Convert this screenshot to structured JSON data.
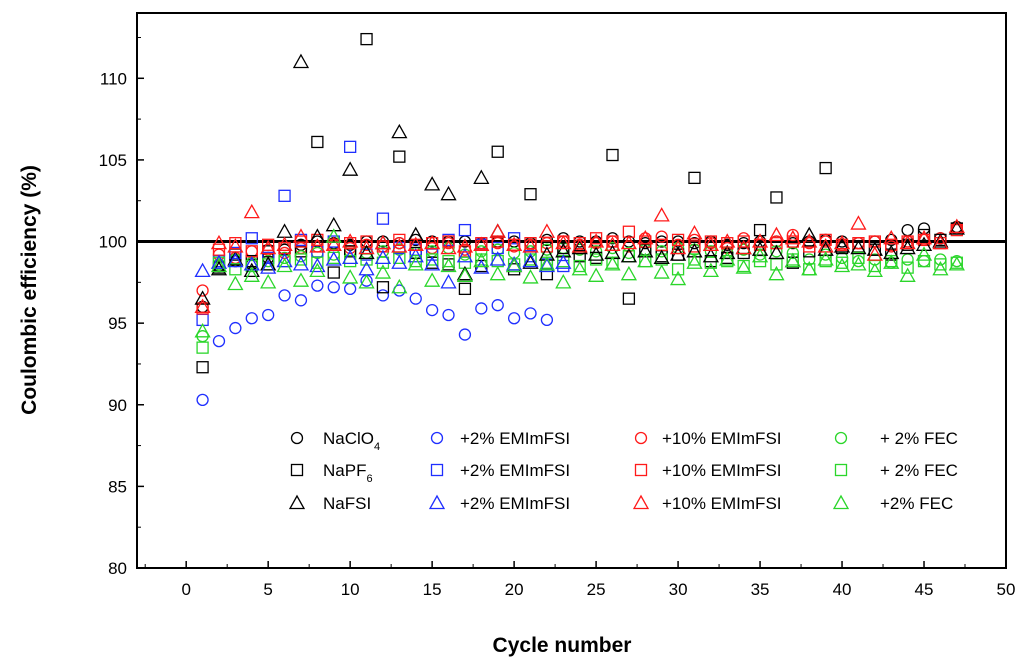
{
  "chart_data": {
    "type": "scatter",
    "xlabel": "Cycle number",
    "ylabel": "Coulombic efficiency (%)",
    "xlim": [
      -3,
      50
    ],
    "ylim": [
      80,
      114
    ],
    "xticks": [
      0,
      5,
      10,
      15,
      20,
      25,
      30,
      35,
      40,
      45,
      50
    ],
    "yticks": [
      80,
      85,
      90,
      95,
      100,
      105,
      110
    ],
    "reference_line_y": 100,
    "legend_position": "bottom-right (inside plot)",
    "legend_rows": [
      {
        "salt": "NaClO",
        "salt_subscript": "4",
        "marker": "circle"
      },
      {
        "salt": "NaPF",
        "salt_subscript": "6",
        "marker": "square"
      },
      {
        "salt": "NaFSI",
        "salt_subscript": "",
        "marker": "triangle"
      }
    ],
    "series": [
      {
        "marker": "circle",
        "color": "#000000",
        "legend": "",
        "x": [
          1,
          2,
          3,
          4,
          5,
          6,
          7,
          8,
          9,
          10,
          11,
          12,
          13,
          14,
          15,
          16,
          17,
          18,
          19,
          20,
          21,
          22,
          23,
          24,
          25,
          26,
          27,
          28,
          29,
          30,
          31,
          32,
          33,
          34,
          35,
          36,
          37,
          38,
          39,
          40,
          41,
          42,
          43,
          44,
          45,
          46,
          47
        ],
        "y": [
          96.0,
          98.5,
          98.8,
          98.6,
          99.0,
          99.5,
          99.8,
          100.0,
          99.9,
          99.8,
          100.0,
          100.0,
          99.9,
          100.1,
          100.0,
          100.0,
          100.0,
          99.9,
          100.0,
          100.0,
          99.9,
          100.1,
          100.2,
          100.0,
          100.0,
          100.2,
          100.0,
          99.9,
          100.0,
          100.0,
          99.9,
          100.0,
          99.8,
          99.9,
          100.0,
          100.0,
          99.9,
          100.0,
          100.1,
          100.0,
          99.9,
          100.0,
          100.1,
          100.7,
          100.8,
          100.2,
          100.9
        ]
      },
      {
        "marker": "circle",
        "color": "#1f2fff",
        "legend": "+2% EMImFSI",
        "x": [
          1,
          2,
          3,
          4,
          5,
          6,
          7,
          8,
          9,
          10,
          11,
          12,
          13,
          14,
          15,
          16,
          17,
          18,
          19,
          20,
          21,
          22
        ],
        "y": [
          90.3,
          93.9,
          94.7,
          95.3,
          95.5,
          96.7,
          96.4,
          97.3,
          97.2,
          97.1,
          97.6,
          96.7,
          97.0,
          96.5,
          95.8,
          95.5,
          94.3,
          95.9,
          96.1,
          95.3,
          95.6,
          95.2
        ]
      },
      {
        "marker": "circle",
        "color": "#ff1a1a",
        "legend": "+10% EMImFSI",
        "x": [
          1,
          2,
          3,
          4,
          5,
          6,
          7,
          8,
          9,
          10,
          11,
          12,
          13,
          14,
          15,
          16,
          17,
          18,
          19,
          20,
          21,
          22,
          23,
          24,
          25,
          26,
          27,
          28,
          29,
          30,
          31,
          32,
          33,
          34,
          35,
          36,
          37,
          38,
          39,
          40,
          41,
          42,
          43,
          44,
          45,
          46,
          47
        ],
        "y": [
          97.0,
          99.2,
          99.0,
          99.4,
          99.5,
          99.3,
          99.6,
          99.7,
          99.8,
          99.6,
          99.8,
          99.7,
          99.9,
          99.8,
          99.6,
          99.9,
          99.5,
          99.8,
          99.9,
          99.7,
          99.8,
          99.9,
          100.0,
          99.8,
          99.9,
          100.0,
          99.7,
          100.2,
          100.3,
          99.8,
          100.1,
          99.9,
          99.6,
          100.2,
          99.8,
          100.0,
          100.4,
          99.9,
          100.0,
          99.8,
          99.9,
          100.0,
          99.7,
          100.0,
          100.1,
          100.2,
          100.8
        ]
      },
      {
        "marker": "circle",
        "color": "#2bd62b",
        "legend": "+ 2% FEC",
        "x": [
          1,
          2,
          3,
          4,
          5,
          6,
          7,
          8,
          9,
          10,
          11,
          12,
          13,
          14,
          15,
          16,
          17,
          18,
          19,
          20,
          21,
          22,
          23,
          24,
          25,
          26,
          27,
          28,
          29,
          30,
          31,
          32,
          33,
          34,
          35,
          36,
          37,
          38,
          39,
          40,
          41,
          42,
          43,
          44,
          45,
          46,
          47
        ],
        "y": [
          94.2,
          98.6,
          98.9,
          98.7,
          98.8,
          99.0,
          99.1,
          99.3,
          99.2,
          99.4,
          99.3,
          99.4,
          99.5,
          99.3,
          99.4,
          99.6,
          99.2,
          99.4,
          99.5,
          99.3,
          99.4,
          99.5,
          99.6,
          99.5,
          99.4,
          99.6,
          99.3,
          99.5,
          99.4,
          99.6,
          99.5,
          99.4,
          99.3,
          99.5,
          99.2,
          99.4,
          99.3,
          98.9,
          99.2,
          99.0,
          98.8,
          98.9,
          98.7,
          98.9,
          98.8,
          98.9,
          98.8
        ]
      },
      {
        "marker": "square",
        "color": "#000000",
        "legend": "",
        "x": [
          1,
          2,
          3,
          4,
          5,
          6,
          7,
          8,
          9,
          10,
          11,
          12,
          13,
          14,
          15,
          16,
          17,
          18,
          19,
          20,
          21,
          22,
          23,
          24,
          25,
          26,
          27,
          28,
          29,
          30,
          31,
          32,
          33,
          34,
          35,
          36,
          37,
          38,
          39,
          40,
          41,
          42,
          43,
          44,
          45,
          46,
          47
        ],
        "y": [
          92.3,
          98.4,
          99.2,
          98.8,
          99.4,
          99.6,
          99.4,
          106.1,
          98.1,
          99.4,
          112.4,
          97.2,
          105.2,
          99.3,
          98.7,
          98.6,
          97.1,
          98.5,
          105.5,
          98.3,
          102.9,
          98.0,
          99.6,
          99.1,
          99.0,
          105.3,
          96.5,
          99.5,
          99.1,
          99.2,
          103.9,
          98.8,
          99.0,
          99.3,
          100.7,
          102.7,
          98.7,
          99.4,
          104.5,
          99.6,
          99.7,
          99.5,
          99.2,
          99.8,
          100.4,
          100.1,
          100.8
        ]
      },
      {
        "marker": "square",
        "color": "#1f2fff",
        "legend": "+2% EMImFSI",
        "x": [
          1,
          2,
          3,
          4,
          5,
          6,
          7,
          8,
          9,
          10,
          11,
          12,
          13,
          14,
          15,
          16,
          17,
          18,
          19,
          20,
          21,
          22,
          23
        ],
        "y": [
          95.2,
          98.8,
          99.3,
          100.2,
          99.0,
          102.8,
          100.1,
          99.4,
          100.0,
          105.8,
          99.2,
          101.4,
          99.6,
          99.5,
          99.2,
          100.1,
          100.7,
          99.8,
          99.6,
          100.2,
          99.1,
          98.6,
          98.5
        ]
      },
      {
        "marker": "square",
        "color": "#ff1a1a",
        "legend": "+10% EMImFSI",
        "x": [
          1,
          2,
          3,
          4,
          5,
          6,
          7,
          8,
          9,
          10,
          11,
          12,
          13,
          14,
          15,
          16,
          17,
          18,
          19,
          20,
          21,
          22,
          23,
          24,
          25,
          26,
          27,
          28,
          29,
          30,
          31,
          32,
          33,
          34,
          35,
          36,
          37,
          38,
          39,
          40,
          41,
          42,
          43,
          44,
          45,
          46,
          47
        ],
        "y": [
          95.9,
          99.5,
          99.9,
          99.4,
          99.8,
          99.6,
          100.0,
          100.1,
          99.8,
          99.9,
          100.0,
          99.7,
          100.1,
          99.8,
          99.9,
          100.0,
          99.4,
          99.9,
          100.0,
          99.8,
          99.9,
          99.7,
          100.0,
          99.9,
          100.2,
          100.0,
          100.6,
          100.0,
          99.8,
          100.1,
          99.7,
          100.0,
          99.9,
          100.0,
          99.8,
          99.9,
          100.0,
          99.7,
          100.1,
          99.8,
          99.9,
          100.0,
          99.8,
          100.0,
          100.1,
          99.9,
          100.7
        ]
      },
      {
        "marker": "square",
        "color": "#2bd62b",
        "legend": "+ 2% FEC",
        "x": [
          1,
          2,
          3,
          4,
          5,
          6,
          7,
          8,
          9,
          10,
          11,
          12,
          13,
          14,
          15,
          16,
          17,
          18,
          19,
          20,
          21,
          22,
          23,
          24,
          25,
          26,
          27,
          28,
          29,
          30,
          31,
          32,
          33,
          34,
          35,
          36,
          37,
          38,
          39,
          40,
          41,
          42,
          43,
          44,
          45,
          46,
          47
        ],
        "y": [
          93.5,
          98.7,
          98.3,
          98.5,
          98.6,
          98.8,
          98.9,
          98.7,
          99.0,
          98.8,
          98.9,
          98.7,
          99.0,
          98.8,
          98.9,
          98.8,
          98.7,
          98.9,
          98.8,
          98.6,
          98.9,
          98.7,
          98.8,
          98.5,
          98.9,
          98.7,
          99.1,
          98.8,
          98.9,
          98.3,
          98.9,
          98.7,
          98.8,
          98.5,
          98.8,
          98.6,
          98.9,
          98.3,
          98.8,
          98.7,
          99.0,
          98.5,
          98.8,
          98.4,
          98.8,
          98.6,
          98.7
        ]
      },
      {
        "marker": "triangle",
        "color": "#000000",
        "legend": "",
        "x": [
          1,
          2,
          3,
          4,
          5,
          6,
          7,
          8,
          9,
          10,
          11,
          12,
          13,
          14,
          15,
          16,
          17,
          18,
          19,
          20,
          21,
          22,
          23,
          24,
          25,
          26,
          27,
          28,
          29,
          30,
          31,
          32,
          33,
          34,
          35,
          36,
          37,
          38,
          39,
          40,
          41,
          42,
          43,
          44,
          45,
          46,
          47
        ],
        "y": [
          96.5,
          98.3,
          98.9,
          98.2,
          98.6,
          100.6,
          111.0,
          100.3,
          101.0,
          104.4,
          99.3,
          99.9,
          106.7,
          100.4,
          103.5,
          102.9,
          98.0,
          103.9,
          100.6,
          98.5,
          98.7,
          99.2,
          99.4,
          99.6,
          99.2,
          99.3,
          99.1,
          99.4,
          99.0,
          99.2,
          99.4,
          99.1,
          99.3,
          99.6,
          99.5,
          99.3,
          98.8,
          100.4,
          99.5,
          99.7,
          99.6,
          99.5,
          99.3,
          99.6,
          99.8,
          100.0,
          100.8
        ]
      },
      {
        "marker": "triangle",
        "color": "#1f2fff",
        "legend": "+2% EMImFSI",
        "x": [
          1,
          2,
          3,
          4,
          5,
          6,
          7,
          8,
          9,
          10,
          11,
          12,
          13,
          14,
          15,
          16,
          17,
          18,
          19,
          20,
          21,
          22,
          23
        ],
        "y": [
          98.2,
          98.7,
          98.8,
          98.6,
          98.4,
          98.8,
          98.6,
          98.5,
          98.9,
          99.0,
          98.3,
          99.0,
          98.7,
          99.1,
          98.6,
          97.5,
          99.1,
          98.4,
          98.9,
          98.6,
          98.8,
          98.5,
          98.7
        ]
      },
      {
        "marker": "triangle",
        "color": "#ff1a1a",
        "legend": "+10% EMImFSI",
        "x": [
          1,
          2,
          3,
          4,
          5,
          6,
          7,
          8,
          9,
          10,
          11,
          12,
          13,
          14,
          15,
          16,
          17,
          18,
          19,
          20,
          21,
          22,
          23,
          24,
          25,
          26,
          27,
          28,
          29,
          30,
          31,
          32,
          33,
          34,
          35,
          36,
          37,
          38,
          39,
          40,
          41,
          42,
          43,
          44,
          45,
          46,
          47
        ],
        "y": [
          96.0,
          99.9,
          99.7,
          101.8,
          99.6,
          99.8,
          100.3,
          99.7,
          99.8,
          100.0,
          99.6,
          99.9,
          99.7,
          99.8,
          99.9,
          99.6,
          99.7,
          99.8,
          100.6,
          99.8,
          99.7,
          100.6,
          99.9,
          99.7,
          100.0,
          99.8,
          99.9,
          100.2,
          101.6,
          99.6,
          100.5,
          99.8,
          100.0,
          99.6,
          100.0,
          100.4,
          100.2,
          100.0,
          99.7,
          99.9,
          101.1,
          99.2,
          100.2,
          99.9,
          100.2,
          99.9,
          100.9
        ]
      },
      {
        "marker": "triangle",
        "color": "#2bd62b",
        "legend": "+2% FEC",
        "x": [
          1,
          2,
          3,
          4,
          5,
          6,
          7,
          8,
          9,
          10,
          11,
          12,
          13,
          14,
          15,
          16,
          17,
          18,
          19,
          20,
          21,
          22,
          23,
          24,
          25,
          26,
          27,
          28,
          29,
          30,
          31,
          32,
          33,
          34,
          35,
          36,
          37,
          38,
          39,
          40,
          41,
          42,
          43,
          44,
          45,
          46,
          47
        ],
        "y": [
          94.5,
          98.5,
          97.4,
          97.9,
          97.5,
          98.5,
          97.6,
          98.2,
          100.3,
          97.8,
          97.5,
          98.1,
          97.2,
          98.6,
          97.6,
          98.5,
          97.9,
          98.8,
          98.0,
          98.5,
          97.8,
          98.6,
          97.5,
          98.3,
          97.9,
          98.6,
          98.0,
          98.8,
          98.1,
          97.7,
          98.7,
          98.2,
          98.9,
          98.4,
          99.1,
          98.0,
          98.8,
          98.3,
          98.9,
          98.5,
          98.6,
          98.2,
          98.7,
          97.9,
          99.2,
          98.3,
          98.6
        ]
      }
    ]
  }
}
